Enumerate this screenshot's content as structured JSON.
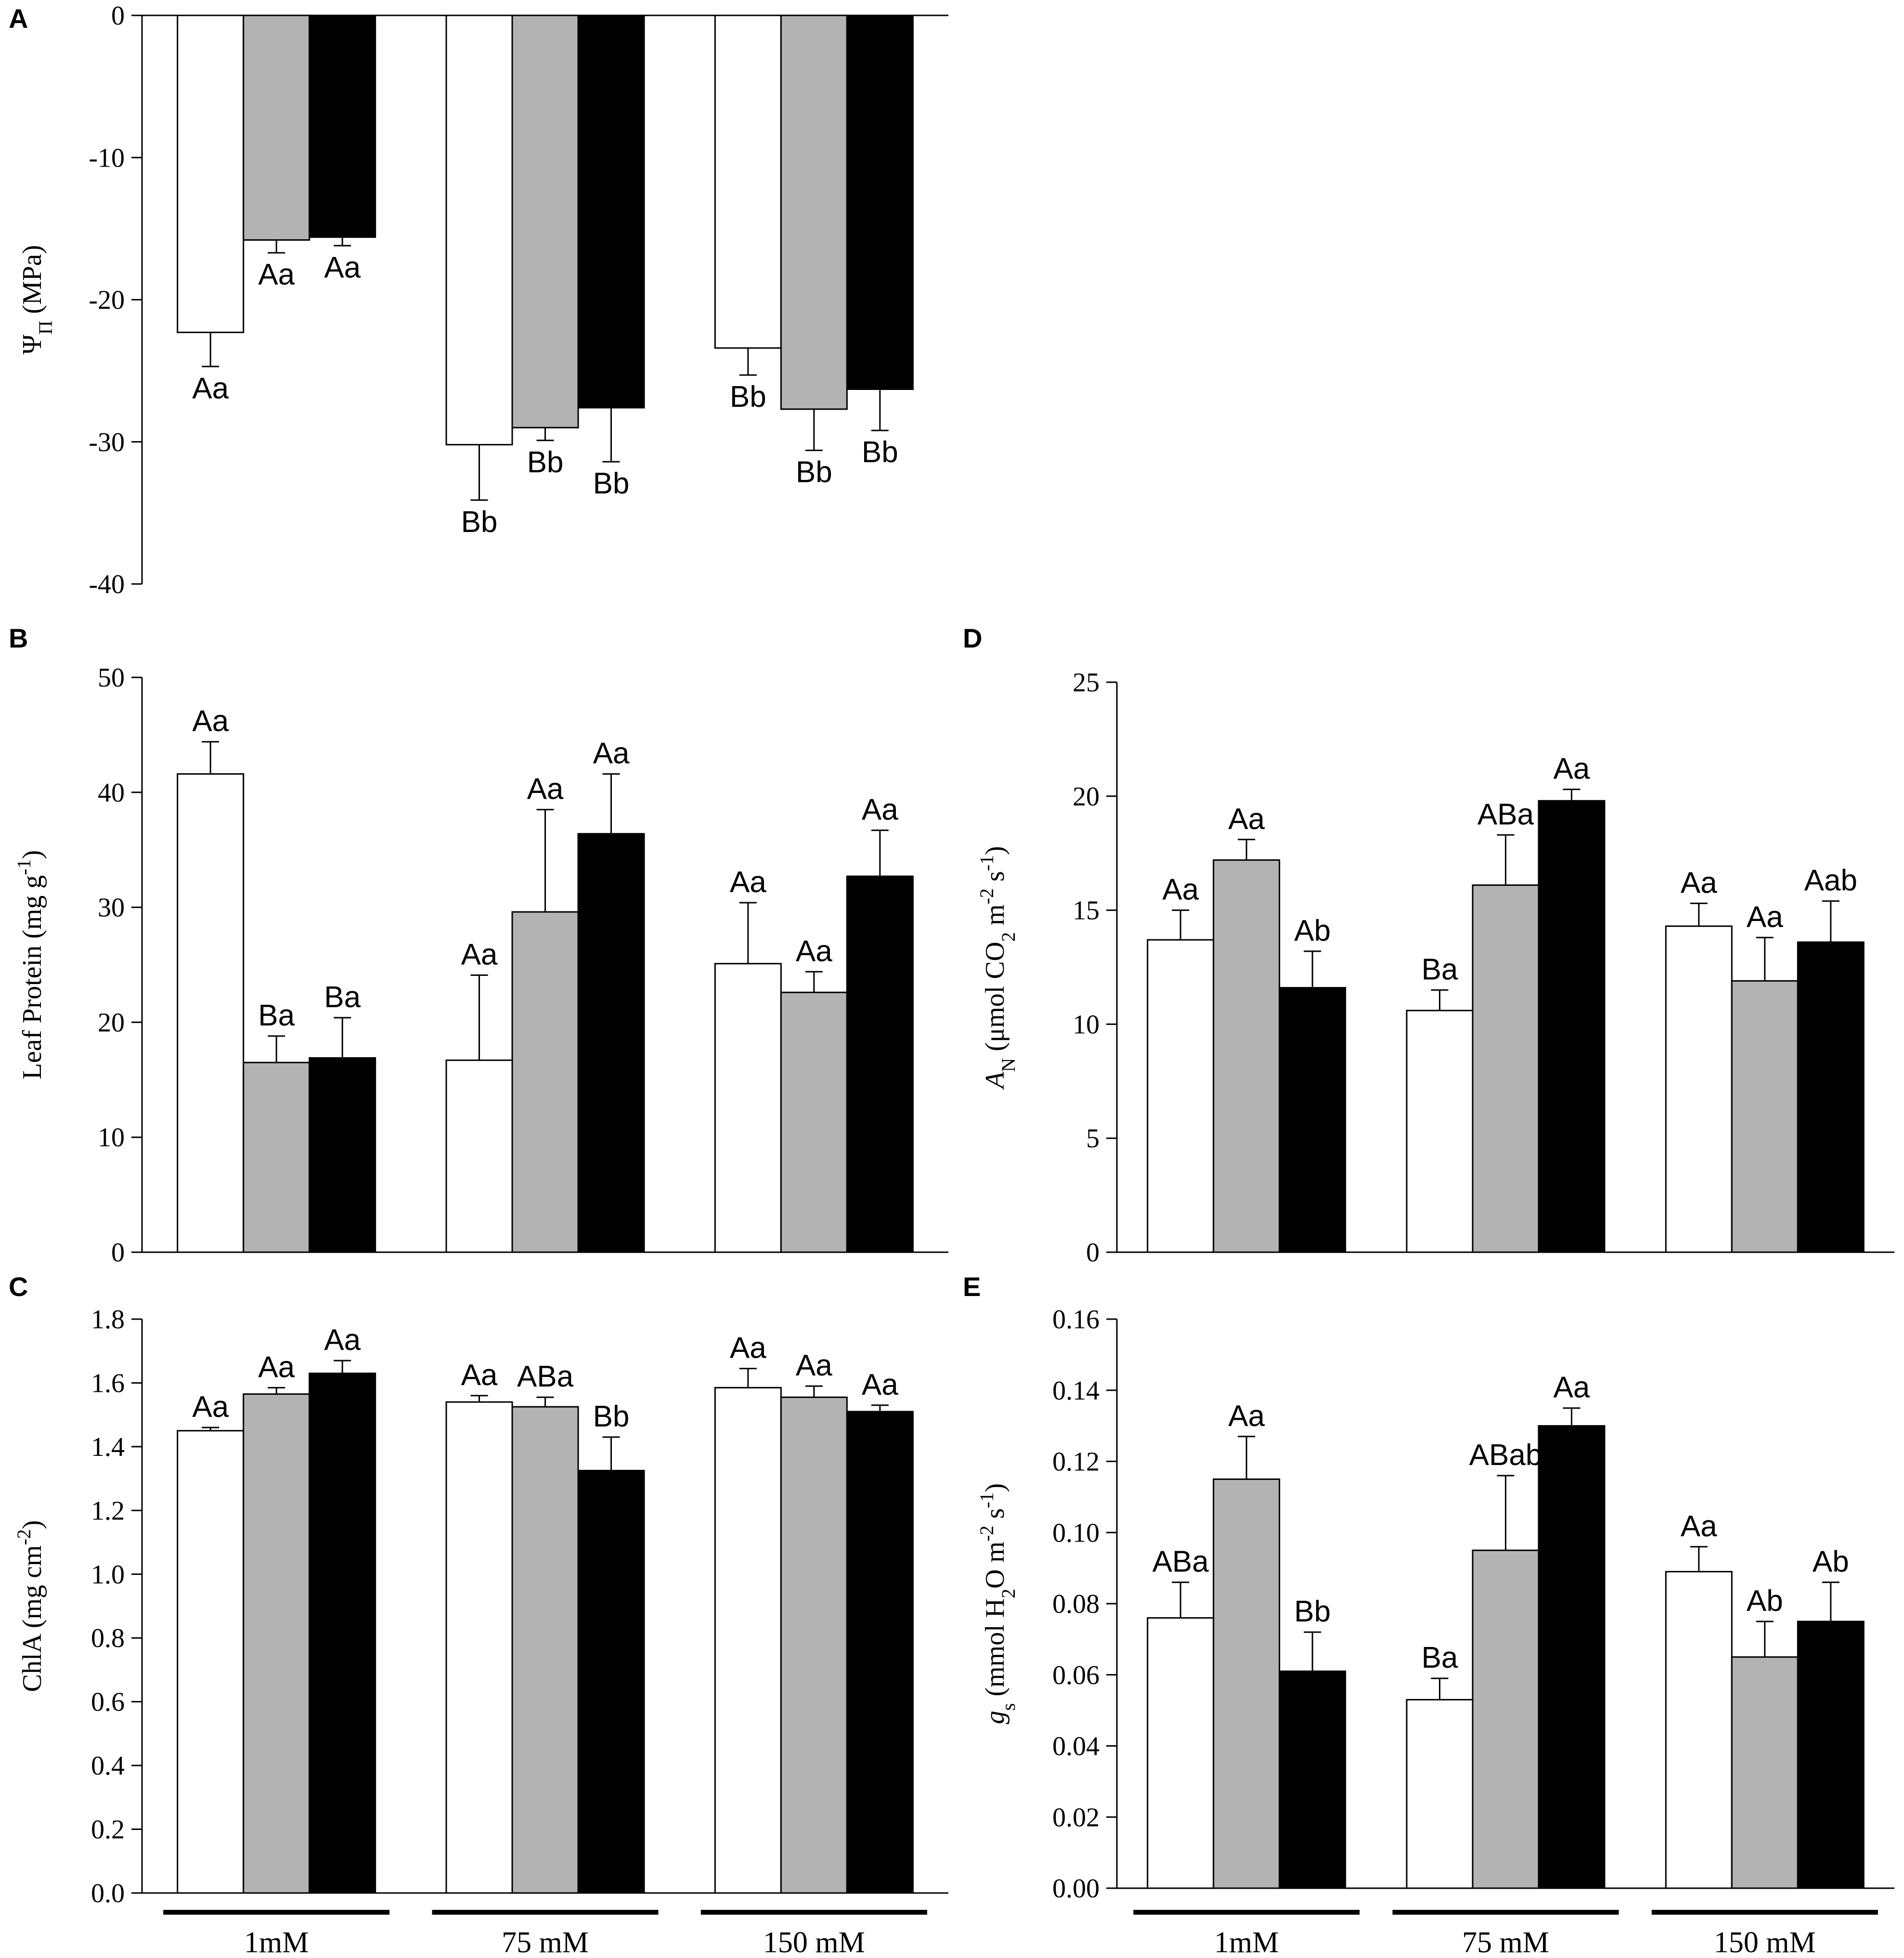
{
  "figure": {
    "group_labels": [
      "1mM",
      "75 mM",
      "150 mM"
    ],
    "series_colors": [
      "#ffffff",
      "#b3b3b3",
      "#000000"
    ]
  },
  "chart_data": [
    {
      "id": "A",
      "panel_label": "A",
      "type": "bar",
      "ylabel": "Ψ",
      "ylabel_sub": "Π",
      "ylabel_tail": " (MPa)",
      "ylim": [
        -40,
        0
      ],
      "yticks": [
        0,
        -10,
        -20,
        -30,
        -40
      ],
      "tick_labels": [
        "0",
        "-10",
        "-20",
        "-30",
        "-40"
      ],
      "categories": [
        "1mM",
        "75 mM",
        "150 mM"
      ],
      "series": [
        {
          "name": "white",
          "values": [
            -22.3,
            -30.2,
            -23.4
          ],
          "errors": [
            2.4,
            3.9,
            1.9
          ],
          "labels": [
            "Aa",
            "Bb",
            "Bb"
          ]
        },
        {
          "name": "gray",
          "values": [
            -15.8,
            -29.0,
            -27.7
          ],
          "errors": [
            0.9,
            0.9,
            2.9
          ],
          "labels": [
            "Aa",
            "Bb",
            "Bb"
          ]
        },
        {
          "name": "black",
          "values": [
            -15.6,
            -27.6,
            -26.3
          ],
          "errors": [
            0.6,
            3.8,
            2.9
          ],
          "labels": [
            "Aa",
            "Bb",
            "Bb"
          ]
        }
      ]
    },
    {
      "id": "B",
      "panel_label": "B",
      "type": "bar",
      "ylabel": "Leaf Protein (mg g",
      "ylabel_sup": "-1",
      "ylabel_tail": ")",
      "ylim": [
        0,
        50
      ],
      "yticks": [
        0,
        10,
        20,
        30,
        40,
        50
      ],
      "tick_labels": [
        "0",
        "10",
        "20",
        "30",
        "40",
        "50"
      ],
      "categories": [
        "1mM",
        "75 mM",
        "150 mM"
      ],
      "series": [
        {
          "name": "white",
          "values": [
            41.6,
            16.7,
            25.1
          ],
          "errors": [
            2.8,
            7.4,
            5.3
          ],
          "labels": [
            "Aa",
            "Aa",
            "Aa"
          ]
        },
        {
          "name": "gray",
          "values": [
            16.5,
            29.6,
            22.6
          ],
          "errors": [
            2.3,
            8.9,
            1.8
          ],
          "labels": [
            "Ba",
            "Aa",
            "Aa"
          ]
        },
        {
          "name": "black",
          "values": [
            16.9,
            36.4,
            32.7
          ],
          "errors": [
            3.5,
            5.2,
            4.0
          ],
          "labels": [
            "Ba",
            "Aa",
            "Aa"
          ]
        }
      ]
    },
    {
      "id": "C",
      "panel_label": "C",
      "type": "bar",
      "ylabel": "ChlA (mg cm",
      "ylabel_sup": "-2",
      "ylabel_tail": ")",
      "ylim": [
        0,
        1.8
      ],
      "yticks": [
        0,
        0.2,
        0.4,
        0.6,
        0.8,
        1.0,
        1.2,
        1.4,
        1.6,
        1.8
      ],
      "tick_labels": [
        "0.0",
        "0.2",
        "0.4",
        "0.6",
        "0.8",
        "1.0",
        "1.2",
        "1.4",
        "1.6",
        "1.8"
      ],
      "categories": [
        "1mM",
        "75 mM",
        "150 mM"
      ],
      "series": [
        {
          "name": "white",
          "values": [
            1.45,
            1.54,
            1.585
          ],
          "errors": [
            0.01,
            0.02,
            0.06
          ],
          "labels": [
            "Aa",
            "Aa",
            "Aa"
          ]
        },
        {
          "name": "gray",
          "values": [
            1.565,
            1.525,
            1.555
          ],
          "errors": [
            0.02,
            0.03,
            0.035
          ],
          "labels": [
            "Aa",
            "ABa",
            "Aa"
          ]
        },
        {
          "name": "black",
          "values": [
            1.63,
            1.325,
            1.51
          ],
          "errors": [
            0.04,
            0.105,
            0.02
          ],
          "labels": [
            "Aa",
            "Bb",
            "Aa"
          ]
        }
      ]
    },
    {
      "id": "D",
      "panel_label": "D",
      "type": "bar",
      "ylabel_pre": "A",
      "ylabel_pre_sub": "N",
      "ylabel": " (μmol CO",
      "ylabel_sub": "2",
      "ylabel_mid": " m",
      "ylabel_sup": "-2",
      "ylabel_mid2": " s",
      "ylabel_sup2": "-1",
      "ylabel_tail": ")",
      "ylim": [
        0,
        25
      ],
      "yticks": [
        0,
        5,
        10,
        15,
        20,
        25
      ],
      "tick_labels": [
        "0",
        "5",
        "10",
        "15",
        "20",
        "25"
      ],
      "categories": [
        "1mM",
        "75 mM",
        "150 mM"
      ],
      "series": [
        {
          "name": "white",
          "values": [
            13.7,
            10.6,
            14.3
          ],
          "errors": [
            1.3,
            0.9,
            1.0
          ],
          "labels": [
            "Aa",
            "Ba",
            "Aa"
          ]
        },
        {
          "name": "gray",
          "values": [
            17.2,
            16.1,
            11.9
          ],
          "errors": [
            0.9,
            2.2,
            1.9
          ],
          "labels": [
            "Aa",
            "ABa",
            "Aa"
          ]
        },
        {
          "name": "black",
          "values": [
            11.6,
            19.8,
            13.6
          ],
          "errors": [
            1.6,
            0.5,
            1.8
          ],
          "labels": [
            "Ab",
            "Aa",
            "Aab"
          ]
        }
      ]
    },
    {
      "id": "E",
      "panel_label": "E",
      "type": "bar",
      "ylabel_pre": "g",
      "ylabel_pre_sub": "s",
      "ylabel": " (mmol H",
      "ylabel_sub": "2",
      "ylabel_mid": "O m",
      "ylabel_sup": "-2",
      "ylabel_mid2": " s",
      "ylabel_sup2": "-1",
      "ylabel_tail": ")",
      "ylim": [
        0,
        0.16
      ],
      "yticks": [
        0,
        0.02,
        0.04,
        0.06,
        0.08,
        0.1,
        0.12,
        0.14,
        0.16
      ],
      "tick_labels": [
        "0.00",
        "0.02",
        "0.04",
        "0.06",
        "0.08",
        "0.10",
        "0.12",
        "0.14",
        "0.16"
      ],
      "categories": [
        "1mM",
        "75 mM",
        "150 mM"
      ],
      "series": [
        {
          "name": "white",
          "values": [
            0.076,
            0.053,
            0.089
          ],
          "errors": [
            0.01,
            0.006,
            0.007
          ],
          "labels": [
            "ABa",
            "Ba",
            "Aa"
          ]
        },
        {
          "name": "gray",
          "values": [
            0.115,
            0.095,
            0.065
          ],
          "errors": [
            0.012,
            0.021,
            0.01
          ],
          "labels": [
            "Aa",
            "ABab",
            "Ab"
          ]
        },
        {
          "name": "black",
          "values": [
            0.061,
            0.13,
            0.075
          ],
          "errors": [
            0.011,
            0.005,
            0.011
          ],
          "labels": [
            "Bb",
            "Aa",
            "Ab"
          ]
        }
      ]
    }
  ]
}
